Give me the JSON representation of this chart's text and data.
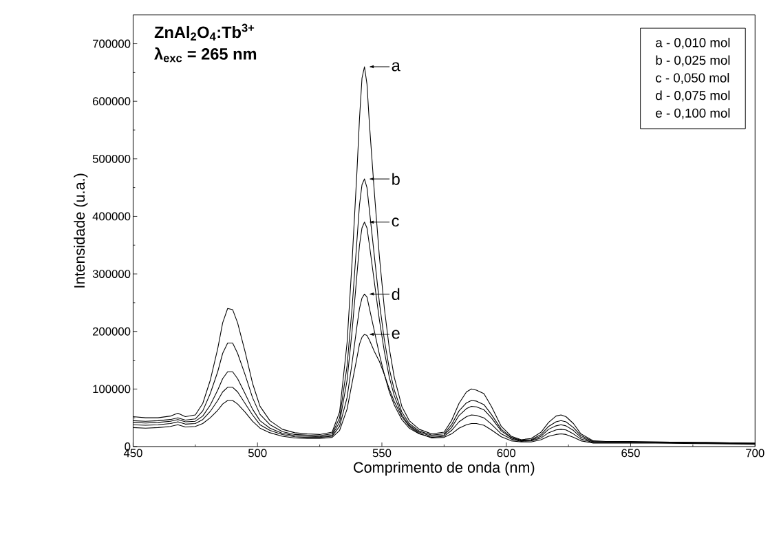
{
  "chart_data": {
    "type": "line",
    "legend": "top",
    "xlabel": "Comprimento de onda (nm)",
    "ylabel": "Intensidade (u.a.)",
    "annotations": [
      "ZnAl$_{2}$O$_{4}$:Tb$^{3+}$",
      "λ$_{exc}$ = 265 nm",
      "a - 0,010 mol",
      "b - 0,025 mol",
      "c - 0,050 mol",
      "d - 0,075 mol",
      "e - 0,100 mol"
    ],
    "xlim": [
      450,
      700
    ],
    "ylim": [
      0,
      750000
    ],
    "xticks": [
      450,
      500,
      550,
      600,
      650,
      700
    ],
    "yticks": [
      0,
      100000,
      200000,
      300000,
      400000,
      500000,
      600000,
      700000
    ],
    "x": [
      450,
      455,
      460,
      465,
      468,
      471,
      475,
      478,
      481,
      484,
      486,
      488,
      490,
      492,
      495,
      498,
      501,
      505,
      510,
      515,
      520,
      525,
      530,
      533,
      536,
      538,
      540,
      541,
      542,
      543,
      544,
      545,
      547,
      549,
      551,
      553,
      555,
      558,
      561,
      565,
      570,
      575,
      578,
      581,
      584,
      586,
      588,
      591,
      594,
      598,
      602,
      606,
      610,
      614,
      617,
      620,
      622,
      624,
      627,
      630,
      635,
      640,
      650,
      660,
      680,
      700
    ],
    "series": [
      {
        "name": "a",
        "color": "#000000",
        "values": [
          52000,
          50000,
          50000,
          53000,
          58000,
          52000,
          55000,
          75000,
          115000,
          170000,
          215000,
          240000,
          238000,
          215000,
          165000,
          110000,
          70000,
          45000,
          30000,
          24000,
          22000,
          21000,
          25000,
          60000,
          180000,
          320000,
          480000,
          570000,
          640000,
          660000,
          630000,
          560000,
          440000,
          330000,
          240000,
          170000,
          120000,
          70000,
          45000,
          30000,
          22000,
          25000,
          45000,
          75000,
          95000,
          100000,
          98000,
          92000,
          70000,
          35000,
          18000,
          12000,
          14000,
          25000,
          42000,
          53000,
          55000,
          52000,
          40000,
          22000,
          10000,
          9000,
          9000,
          8000,
          7000,
          6000
        ]
      },
      {
        "name": "b",
        "color": "#000000",
        "values": [
          45000,
          44000,
          45000,
          47000,
          50000,
          46000,
          48000,
          62000,
          92000,
          130000,
          162000,
          180000,
          180000,
          162000,
          125000,
          85000,
          56000,
          38000,
          26000,
          21000,
          20000,
          19000,
          22000,
          50000,
          140000,
          240000,
          360000,
          420000,
          455000,
          465000,
          450000,
          410000,
          330000,
          250000,
          185000,
          135000,
          98000,
          60000,
          40000,
          27000,
          20000,
          22000,
          38000,
          62000,
          76000,
          80000,
          79000,
          73000,
          56000,
          30000,
          16000,
          11000,
          12000,
          21000,
          35000,
          43000,
          45000,
          43000,
          33000,
          19000,
          9000,
          8000,
          8000,
          8000,
          7000,
          6000
        ]
      },
      {
        "name": "c",
        "color": "#000000",
        "values": [
          42000,
          41000,
          42000,
          44000,
          47000,
          43000,
          44000,
          53000,
          72000,
          98000,
          118000,
          130000,
          130000,
          118000,
          92000,
          65000,
          45000,
          32000,
          23000,
          19000,
          18000,
          17000,
          20000,
          42000,
          115000,
          200000,
          300000,
          350000,
          380000,
          390000,
          380000,
          350000,
          285000,
          220000,
          165000,
          120000,
          88000,
          55000,
          37000,
          25000,
          18000,
          20000,
          33000,
          54000,
          66000,
          70000,
          69000,
          64000,
          50000,
          27000,
          15000,
          10000,
          11000,
          18000,
          30000,
          36000,
          38000,
          36000,
          28000,
          16000,
          8000,
          8000,
          8000,
          7000,
          6000,
          5000
        ]
      },
      {
        "name": "d",
        "color": "#000000",
        "values": [
          38000,
          37000,
          38000,
          40000,
          43000,
          39000,
          40000,
          47000,
          61000,
          80000,
          95000,
          103000,
          103000,
          95000,
          75000,
          55000,
          38000,
          28000,
          21000,
          17000,
          16000,
          16000,
          18000,
          35000,
          85000,
          145000,
          210000,
          240000,
          258000,
          265000,
          260000,
          240000,
          200000,
          160000,
          125000,
          95000,
          72000,
          47000,
          32000,
          22000,
          16000,
          18000,
          28000,
          43000,
          52000,
          55000,
          54000,
          50000,
          39000,
          22000,
          13000,
          9000,
          10000,
          15000,
          24000,
          29000,
          30000,
          29000,
          22000,
          13000,
          7000,
          7000,
          7000,
          7000,
          6000,
          5000
        ]
      },
      {
        "name": "e",
        "color": "#000000",
        "values": [
          33000,
          32000,
          33000,
          35000,
          38000,
          34000,
          35000,
          40000,
          50000,
          63000,
          74000,
          80000,
          80000,
          74000,
          60000,
          44000,
          32000,
          24000,
          18000,
          15000,
          14000,
          14000,
          16000,
          28000,
          65000,
          110000,
          155000,
          178000,
          190000,
          195000,
          193000,
          185000,
          165000,
          148000,
          125000,
          100000,
          78000,
          52000,
          35000,
          23000,
          15000,
          16000,
          22000,
          32000,
          38000,
          40000,
          40000,
          37000,
          29000,
          17000,
          10000,
          8000,
          8000,
          12000,
          18000,
          21000,
          22000,
          21000,
          16000,
          10000,
          6000,
          6000,
          6000,
          6000,
          5000,
          4000
        ]
      }
    ]
  }
}
